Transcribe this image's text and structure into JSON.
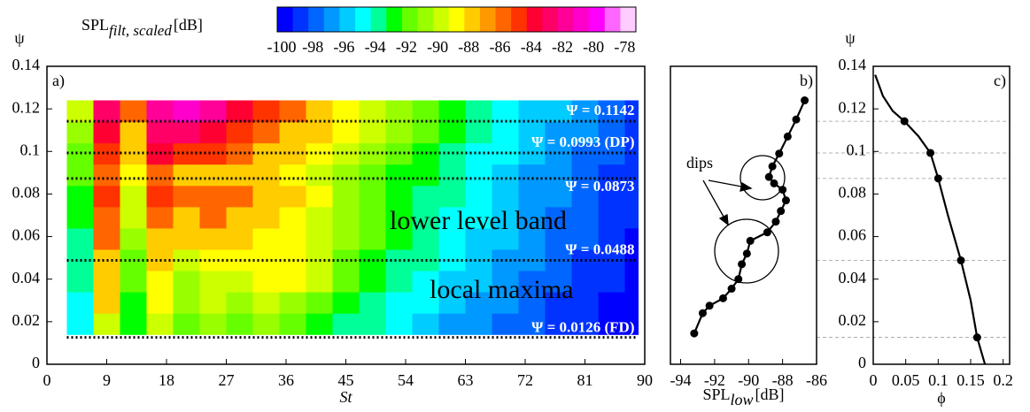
{
  "chart_data": [
    {
      "type": "heatmap",
      "panel_label": "a)",
      "ylabel": "ψ",
      "xlabel": "St",
      "xlim": [
        0,
        90
      ],
      "xticks": [
        0,
        9,
        18,
        27,
        36,
        45,
        54,
        63,
        72,
        81,
        90
      ],
      "ylim": [
        0,
        0.14
      ],
      "yticks": [
        0,
        0.02,
        0.04,
        0.06,
        0.08,
        0.1,
        0.12,
        0.14
      ],
      "colorbar": {
        "title": [
          "SPL",
          "filt, scaled",
          "[dB]"
        ],
        "zlim": [
          -100,
          -77
        ],
        "ticks": [
          -100,
          -98,
          -96,
          -94,
          -92,
          -90,
          -88,
          -86,
          -84,
          -82,
          -80,
          -78
        ],
        "colors": [
          "#0000ff",
          "#0033ff",
          "#0066ff",
          "#0099ff",
          "#00ccff",
          "#00ffff",
          "#00ff99",
          "#00ff00",
          "#66ff00",
          "#99ff00",
          "#ccff00",
          "#ffff00",
          "#ffcc00",
          "#ff9900",
          "#ff6600",
          "#ff3300",
          "#ff0033",
          "#ff0066",
          "#ff0099",
          "#ff00cc",
          "#ff00ff",
          "#ff66ff",
          "#ffccff"
        ]
      },
      "x_edges": [
        3,
        7,
        11,
        15,
        19,
        23,
        27,
        31,
        35,
        39,
        43,
        47,
        51,
        55,
        59,
        63,
        67,
        71,
        75,
        79,
        83,
        87,
        89
      ],
      "y_edges": [
        0.014,
        0.024,
        0.034,
        0.044,
        0.054,
        0.064,
        0.074,
        0.084,
        0.094,
        0.104,
        0.114,
        0.124
      ],
      "z": [
        [
          -95,
          -90,
          -93,
          -90,
          -92,
          -91,
          -92,
          -91,
          -92,
          -93,
          -94,
          -94,
          -95,
          -96,
          -97,
          -97,
          -98,
          -98,
          -99,
          -99,
          -100,
          -100
        ],
        [
          -95,
          -88,
          -93,
          -89,
          -91,
          -90,
          -91,
          -90,
          -91,
          -92,
          -93,
          -94,
          -95,
          -95,
          -96,
          -97,
          -97,
          -98,
          -99,
          -99,
          -100,
          -100
        ],
        [
          -94,
          -87,
          -92,
          -89,
          -91,
          -90,
          -90,
          -89,
          -89,
          -90,
          -92,
          -93,
          -94,
          -95,
          -96,
          -96,
          -97,
          -98,
          -98,
          -99,
          -99,
          -100
        ],
        [
          -94,
          -87,
          -92,
          -88,
          -90,
          -89,
          -89,
          -89,
          -89,
          -90,
          -92,
          -93,
          -94,
          -94,
          -95,
          -96,
          -97,
          -97,
          -98,
          -99,
          -99,
          -100
        ],
        [
          -94,
          -86,
          -91,
          -87,
          -88,
          -87,
          -88,
          -89,
          -89,
          -90,
          -91,
          -92,
          -93,
          -94,
          -95,
          -96,
          -96,
          -97,
          -98,
          -98,
          -99,
          -100
        ],
        [
          -93,
          -86,
          -90,
          -86,
          -87,
          -86,
          -87,
          -88,
          -89,
          -90,
          -91,
          -92,
          -93,
          -94,
          -95,
          -95,
          -96,
          -97,
          -98,
          -98,
          -99,
          -99
        ],
        [
          -93,
          -85,
          -90,
          -85,
          -86,
          -86,
          -86,
          -87,
          -88,
          -89,
          -91,
          -92,
          -93,
          -94,
          -94,
          -95,
          -96,
          -97,
          -97,
          -98,
          -99,
          -99
        ],
        [
          -92,
          -86,
          -89,
          -86,
          -87,
          -87,
          -87,
          -88,
          -89,
          -90,
          -91,
          -92,
          -93,
          -93,
          -94,
          -95,
          -96,
          -97,
          -97,
          -98,
          -99,
          -99
        ],
        [
          -92,
          -85,
          -88,
          -84,
          -85,
          -85,
          -86,
          -87,
          -88,
          -89,
          -90,
          -91,
          -92,
          -93,
          -94,
          -95,
          -95,
          -96,
          -97,
          -98,
          -98,
          -99
        ],
        [
          -91,
          -84,
          -87,
          -83,
          -83,
          -84,
          -85,
          -86,
          -87,
          -88,
          -89,
          -90,
          -91,
          -92,
          -93,
          -94,
          -95,
          -96,
          -97,
          -97,
          -98,
          -99
        ],
        [
          -90,
          -83,
          -86,
          -82,
          -81,
          -82,
          -84,
          -85,
          -86,
          -87,
          -89,
          -90,
          -91,
          -92,
          -93,
          -94,
          -95,
          -96,
          -96,
          -97,
          -98,
          -99
        ]
      ],
      "levels": [
        {
          "value": 0.1142,
          "label": "Ψ = 0.1142"
        },
        {
          "value": 0.0993,
          "label": "Ψ = 0.0993 (DP)"
        },
        {
          "value": 0.0873,
          "label": "Ψ = 0.0873"
        },
        {
          "value": 0.0488,
          "label": "Ψ = 0.0488"
        },
        {
          "value": 0.0126,
          "label": "Ψ = 0.0126 (FD)"
        }
      ],
      "annotations": [
        "lower level band",
        "local maxima"
      ]
    },
    {
      "type": "line",
      "panel_label": "b)",
      "xlabel": [
        "SPL",
        "low",
        "[dB]"
      ],
      "xlim": [
        -94.6,
        -86
      ],
      "xticks": [
        -94,
        -92,
        -90,
        -88,
        -86
      ],
      "ylim": [
        0,
        0.14
      ],
      "series": [
        {
          "color": "#000000",
          "marker": true,
          "line": true,
          "x": [
            -93.2,
            -92.7,
            -92.3,
            -91.5,
            -91.0,
            -90.6,
            -90.4,
            -90.1,
            -89.9,
            -88.9,
            -88.4,
            -88.1,
            -87.8,
            -88.0,
            -88.5,
            -88.8,
            -88.6,
            -88.2,
            -87.7,
            -87.2,
            -86.7
          ],
          "values": [
            0.0145,
            0.024,
            0.0275,
            0.031,
            0.0355,
            0.04,
            0.047,
            0.052,
            0.058,
            0.062,
            0.067,
            0.072,
            0.077,
            0.082,
            0.085,
            0.088,
            0.093,
            0.099,
            0.107,
            0.115,
            0.124
          ]
        }
      ],
      "annotations": [
        "dips"
      ]
    },
    {
      "type": "line",
      "panel_label": "c)",
      "ylabel": "ψ",
      "xlabel": "ϕ",
      "xlim": [
        0,
        0.21
      ],
      "xticks": [
        0,
        0.05,
        0.1,
        0.15,
        0.2
      ],
      "ylim": [
        0,
        0.14
      ],
      "yticks": [
        0,
        0.02,
        0.04,
        0.06,
        0.08,
        0.1,
        0.12,
        0.14
      ],
      "series": [
        {
          "color": "#000000",
          "marker": false,
          "line": true,
          "x": [
            0.003,
            0.015,
            0.03,
            0.048,
            0.07,
            0.088,
            0.1,
            0.115,
            0.135,
            0.15,
            0.16,
            0.172
          ],
          "values": [
            0.136,
            0.126,
            0.119,
            0.1142,
            0.107,
            0.0993,
            0.0873,
            0.07,
            0.0488,
            0.03,
            0.0126,
            0
          ]
        },
        {
          "color": "#000000",
          "marker": true,
          "line": false,
          "x": [
            0.048,
            0.088,
            0.1,
            0.135,
            0.16
          ],
          "values": [
            0.1142,
            0.0993,
            0.0873,
            0.0488,
            0.0126
          ]
        }
      ]
    }
  ]
}
